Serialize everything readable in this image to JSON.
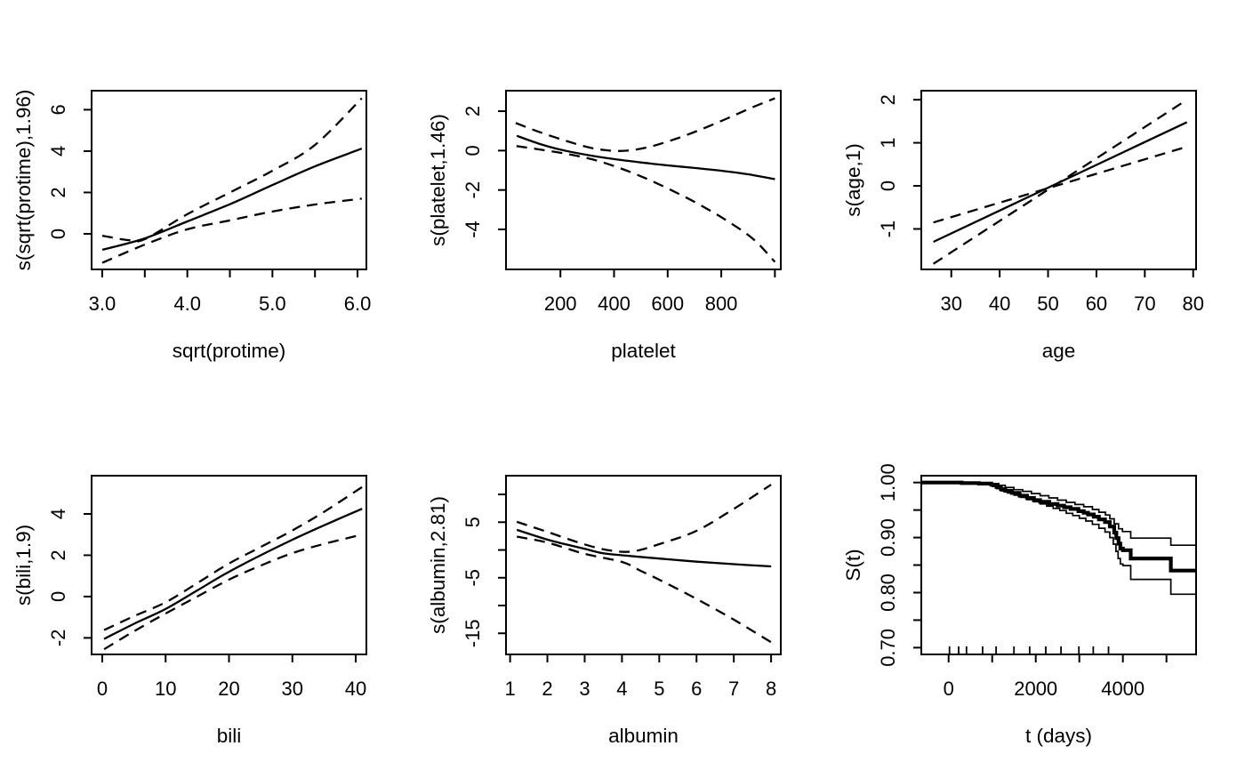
{
  "figure": {
    "background": "#ffffff",
    "line_color": "#000000",
    "layout": "2 rows x 3 columns of base-R style plots",
    "description": "GAM smooth terms with dashed 95% confidence bands and a Kaplan-Meier style survival curve"
  },
  "chart_data": [
    {
      "id": "sqrt-protime",
      "type": "line",
      "xlabel": "sqrt(protime)",
      "ylabel": "s(sqrt(protime),1.96)",
      "xlim": [
        2.875,
        6.104
      ],
      "ylim": [
        -1.72,
        6.92
      ],
      "grid": false,
      "xticks": [
        {
          "v": 3.0,
          "label": "3.0"
        },
        {
          "v": 3.5,
          "label": ""
        },
        {
          "v": 4.0,
          "label": "4.0"
        },
        {
          "v": 4.5,
          "label": ""
        },
        {
          "v": 5.0,
          "label": "5.0"
        },
        {
          "v": 5.5,
          "label": ""
        },
        {
          "v": 6.0,
          "label": "6.0"
        }
      ],
      "yticks": [
        {
          "v": 0,
          "label": "0"
        },
        {
          "v": 2,
          "label": "2"
        },
        {
          "v": 4,
          "label": "4"
        },
        {
          "v": 6,
          "label": "6"
        }
      ],
      "series": [
        {
          "name": "fit",
          "style": "solid",
          "width": 2.3,
          "x": [
            3.0,
            3.5,
            4.0,
            4.5,
            5.0,
            5.5,
            6.05
          ],
          "y": [
            -0.77,
            -0.22,
            0.6,
            1.43,
            2.36,
            3.26,
            4.12
          ]
        },
        {
          "name": "upper-ci",
          "style": "dashed",
          "width": 2.3,
          "x": [
            3.0,
            3.3,
            3.5,
            4.0,
            4.5,
            5.0,
            5.5,
            6.05
          ],
          "y": [
            -0.09,
            -0.3,
            -0.26,
            0.95,
            2.0,
            3.05,
            4.3,
            6.55
          ]
        },
        {
          "name": "lower-ci",
          "style": "dashed",
          "width": 2.3,
          "x": [
            3.0,
            3.5,
            4.0,
            4.5,
            5.0,
            5.5,
            6.05
          ],
          "y": [
            -1.4,
            -0.52,
            0.22,
            0.65,
            1.08,
            1.42,
            1.7
          ]
        }
      ]
    },
    {
      "id": "platelet",
      "type": "line",
      "xlabel": "platelet",
      "ylabel": "s(platelet,1.46)",
      "xlim": [
        -3,
        1022
      ],
      "ylim": [
        -6.03,
        3.04
      ],
      "grid": false,
      "xticks": [
        {
          "v": 200,
          "label": "200"
        },
        {
          "v": 400,
          "label": "400"
        },
        {
          "v": 600,
          "label": "600"
        },
        {
          "v": 800,
          "label": "800"
        },
        {
          "v": 1000,
          "label": ""
        }
      ],
      "yticks": [
        {
          "v": -4,
          "label": "-4"
        },
        {
          "v": -2,
          "label": "-2"
        },
        {
          "v": 0,
          "label": "0"
        },
        {
          "v": 2,
          "label": "2"
        }
      ],
      "series": [
        {
          "name": "fit",
          "style": "solid",
          "width": 2.3,
          "x": [
            37,
            120,
            200,
            300,
            400,
            500,
            600,
            700,
            800,
            900,
            1000
          ],
          "y": [
            0.75,
            0.35,
            0.05,
            -0.22,
            -0.43,
            -0.6,
            -0.75,
            -0.88,
            -1.02,
            -1.2,
            -1.45
          ]
        },
        {
          "name": "upper-ci",
          "style": "dashed",
          "width": 2.3,
          "x": [
            33,
            120,
            220,
            320,
            420,
            520,
            620,
            720,
            820,
            920,
            1000
          ],
          "y": [
            1.4,
            0.95,
            0.5,
            0.12,
            -0.02,
            0.15,
            0.55,
            1.05,
            1.62,
            2.22,
            2.65
          ]
        },
        {
          "name": "lower-ci",
          "style": "dashed",
          "width": 2.3,
          "x": [
            36,
            120,
            220,
            320,
            420,
            520,
            620,
            720,
            820,
            920,
            1000
          ],
          "y": [
            0.23,
            0.06,
            -0.16,
            -0.45,
            -0.88,
            -1.42,
            -2.05,
            -2.75,
            -3.55,
            -4.5,
            -5.65
          ]
        }
      ]
    },
    {
      "id": "age",
      "type": "line",
      "xlabel": "age",
      "ylabel": "s(age,1)",
      "xlim": [
        23.8,
        80.6
      ],
      "ylim": [
        -1.94,
        2.21
      ],
      "grid": false,
      "xticks": [
        {
          "v": 30,
          "label": "30"
        },
        {
          "v": 40,
          "label": "40"
        },
        {
          "v": 50,
          "label": "50"
        },
        {
          "v": 60,
          "label": "60"
        },
        {
          "v": 70,
          "label": "70"
        },
        {
          "v": 80,
          "label": "80"
        }
      ],
      "yticks": [
        {
          "v": -1,
          "label": "-1"
        },
        {
          "v": 0,
          "label": "0"
        },
        {
          "v": 1,
          "label": "1"
        },
        {
          "v": 2,
          "label": "2"
        }
      ],
      "series": [
        {
          "name": "fit",
          "style": "solid",
          "width": 2.3,
          "x": [
            26.3,
            78.7
          ],
          "y": [
            -1.3,
            1.48
          ]
        },
        {
          "name": "upper-ci",
          "style": "dashed",
          "width": 2.3,
          "x": [
            26.3,
            78.7
          ],
          "y": [
            -0.85,
            0.91
          ]
        },
        {
          "name": "lower-ci",
          "style": "dashed",
          "width": 2.3,
          "x": [
            26.3,
            78.7
          ],
          "y": [
            -1.81,
            2.0
          ]
        }
      ]
    },
    {
      "id": "bili",
      "type": "line",
      "xlabel": "bili",
      "ylabel": "s(bili,1.9)",
      "xlim": [
        -1.68,
        41.68
      ],
      "ylim": [
        -2.8,
        5.85
      ],
      "grid": false,
      "xticks": [
        {
          "v": 0,
          "label": "0"
        },
        {
          "v": 10,
          "label": "10"
        },
        {
          "v": 20,
          "label": "20"
        },
        {
          "v": 30,
          "label": "30"
        },
        {
          "v": 40,
          "label": "40"
        }
      ],
      "yticks": [
        {
          "v": -2,
          "label": "-2"
        },
        {
          "v": 0,
          "label": "0"
        },
        {
          "v": 2,
          "label": "2"
        },
        {
          "v": 4,
          "label": "4"
        }
      ],
      "series": [
        {
          "name": "fit",
          "style": "solid",
          "width": 2.3,
          "x": [
            0.3,
            5,
            10,
            15,
            20,
            25,
            30,
            35,
            41
          ],
          "y": [
            -2.05,
            -1.32,
            -0.6,
            0.3,
            1.2,
            2.0,
            2.75,
            3.45,
            4.25
          ]
        },
        {
          "name": "upper-ci",
          "style": "dashed",
          "width": 2.3,
          "x": [
            0.3,
            5,
            10,
            15,
            20,
            25,
            30,
            35,
            41
          ],
          "y": [
            -1.62,
            -0.95,
            -0.28,
            0.65,
            1.6,
            2.4,
            3.2,
            4.1,
            5.3
          ]
        },
        {
          "name": "lower-ci",
          "style": "dashed",
          "width": 2.3,
          "x": [
            0.3,
            5,
            10,
            15,
            20,
            25,
            30,
            35,
            41
          ],
          "y": [
            -2.55,
            -1.68,
            -0.82,
            0.0,
            0.82,
            1.5,
            2.1,
            2.55,
            3.0
          ]
        }
      ]
    },
    {
      "id": "albumin",
      "type": "line",
      "xlabel": "albumin",
      "ylabel": "s(albumin,2.81)",
      "xlim": [
        0.89,
        8.26
      ],
      "ylim": [
        -18.8,
        13.37
      ],
      "grid": false,
      "xticks": [
        {
          "v": 1,
          "label": "1"
        },
        {
          "v": 2,
          "label": "2"
        },
        {
          "v": 3,
          "label": "3"
        },
        {
          "v": 4,
          "label": "4"
        },
        {
          "v": 5,
          "label": "5"
        },
        {
          "v": 6,
          "label": "6"
        },
        {
          "v": 7,
          "label": "7"
        },
        {
          "v": 8,
          "label": "8"
        }
      ],
      "yticks": [
        {
          "v": 10,
          "label": ""
        },
        {
          "v": 5,
          "label": "5"
        },
        {
          "v": 0,
          "label": ""
        },
        {
          "v": -5,
          "label": "-5"
        },
        {
          "v": -10,
          "label": ""
        },
        {
          "v": -15,
          "label": "-15"
        }
      ],
      "series": [
        {
          "name": "fit",
          "style": "solid",
          "width": 2.3,
          "x": [
            1.18,
            2,
            2.5,
            3,
            3.5,
            4,
            5,
            6,
            7,
            8
          ],
          "y": [
            3.62,
            1.86,
            1.0,
            0.2,
            -0.6,
            -0.95,
            -1.55,
            -2.1,
            -2.55,
            -2.95
          ]
        },
        {
          "name": "upper-ci",
          "style": "dashed",
          "width": 2.3,
          "x": [
            1.18,
            2,
            3,
            3.7,
            4.3,
            5,
            6,
            7,
            8
          ],
          "y": [
            5.07,
            3.25,
            1.0,
            -0.1,
            -0.25,
            1.05,
            3.45,
            7.4,
            11.75
          ]
        },
        {
          "name": "lower-ci",
          "style": "dashed",
          "width": 2.3,
          "x": [
            1.18,
            2,
            3,
            4,
            4.5,
            5,
            6,
            7,
            8
          ],
          "y": [
            2.4,
            1.33,
            -0.7,
            -2.15,
            -3.75,
            -5.35,
            -8.8,
            -12.55,
            -16.6
          ]
        }
      ]
    },
    {
      "id": "survival",
      "type": "step",
      "xlabel": "t (days)",
      "ylabel": "S(t)",
      "xlim": [
        -627,
        5680
      ],
      "ylim": [
        0.6877,
        1.0124
      ],
      "grid": false,
      "xticks": [
        {
          "v": 0,
          "label": "0"
        },
        {
          "v": 1000,
          "label": ""
        },
        {
          "v": 2000,
          "label": "2000"
        },
        {
          "v": 3000,
          "label": ""
        },
        {
          "v": 4000,
          "label": "4000"
        },
        {
          "v": 5000,
          "label": ""
        }
      ],
      "yticks": [
        {
          "v": 0.7,
          "label": "0.70"
        },
        {
          "v": 0.75,
          "label": ""
        },
        {
          "v": 0.8,
          "label": "0.80"
        },
        {
          "v": 0.85,
          "label": ""
        },
        {
          "v": 0.9,
          "label": "0.90"
        },
        {
          "v": 0.95,
          "label": ""
        },
        {
          "v": 1.0,
          "label": "1.00"
        }
      ],
      "rug": [
        20,
        230,
        410,
        780,
        1090,
        1500,
        1860,
        2230,
        2580,
        2990,
        3320,
        3670
      ],
      "series": [
        {
          "name": "survival-estimate",
          "style": "solid",
          "width": 4.2,
          "x": [
            -627,
            300,
            700,
            980,
            1100,
            1200,
            1300,
            1450,
            1630,
            1800,
            1960,
            2100,
            2310,
            2500,
            2650,
            2800,
            2980,
            3100,
            3200,
            3330,
            3450,
            3590,
            3700,
            3800,
            3850,
            3900,
            3940,
            4000,
            4180,
            5100,
            5680
          ],
          "y": [
            1.0,
            0.999,
            0.998,
            0.996,
            0.992,
            0.988,
            0.985,
            0.981,
            0.976,
            0.972,
            0.968,
            0.965,
            0.961,
            0.958,
            0.955,
            0.952,
            0.948,
            0.945,
            0.942,
            0.938,
            0.933,
            0.928,
            0.92,
            0.909,
            0.899,
            0.889,
            0.88,
            0.877,
            0.862,
            0.84,
            0.84
          ]
        },
        {
          "name": "upper-ci",
          "style": "solid",
          "width": 1.7,
          "x": [
            -627,
            700,
            1000,
            1150,
            1300,
            1500,
            1700,
            1900,
            2100,
            2300,
            2500,
            2700,
            2900,
            3100,
            3300,
            3450,
            3600,
            3700,
            3800,
            3900,
            3990,
            4180,
            5100,
            5680
          ],
          "y": [
            1.0,
            0.999,
            0.998,
            0.995,
            0.991,
            0.987,
            0.984,
            0.98,
            0.976,
            0.972,
            0.968,
            0.964,
            0.96,
            0.956,
            0.951,
            0.946,
            0.941,
            0.934,
            0.925,
            0.916,
            0.911,
            0.899,
            0.886,
            0.886
          ]
        },
        {
          "name": "lower-ci",
          "style": "solid",
          "width": 1.7,
          "x": [
            -627,
            500,
            800,
            1000,
            1100,
            1200,
            1350,
            1500,
            1650,
            1800,
            1950,
            2100,
            2250,
            2400,
            2550,
            2700,
            2850,
            3000,
            3150,
            3300,
            3450,
            3590,
            3700,
            3780,
            3840,
            3890,
            3940,
            4000,
            4180,
            5100,
            5680
          ],
          "y": [
            1.0,
            0.998,
            0.996,
            0.993,
            0.989,
            0.985,
            0.981,
            0.977,
            0.973,
            0.969,
            0.965,
            0.961,
            0.957,
            0.953,
            0.949,
            0.944,
            0.94,
            0.935,
            0.93,
            0.924,
            0.917,
            0.91,
            0.9,
            0.888,
            0.875,
            0.862,
            0.852,
            0.849,
            0.824,
            0.797,
            0.797
          ]
        }
      ]
    }
  ]
}
